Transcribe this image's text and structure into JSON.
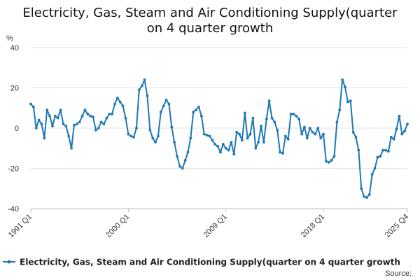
{
  "chart_data": {
    "type": "line",
    "title_lines": [
      "Electricity, Gas, Steam and Air Conditioning Supply(quarter",
      "on 4 quarter growth"
    ],
    "y_unit": "%",
    "ylim": [
      -40,
      40
    ],
    "y_ticks": [
      40,
      20,
      0,
      -20,
      -40
    ],
    "x_tick_labels": [
      "1991 Q1",
      "2000 Q1",
      "2009 Q1",
      "2018 Q1",
      "2025 Q4"
    ],
    "start": "1991 Q1",
    "end": "2025 Q4",
    "grid": "horizontal",
    "legend_position": "bottom",
    "series": [
      {
        "name": "Electricity, Gas, Steam and Air Conditioning Supply(quarter on 4 quarter growth",
        "color": "#1f78b4",
        "values": [
          12,
          10.5,
          0,
          4,
          2,
          -5,
          9,
          6,
          1,
          6,
          5,
          9,
          2,
          1,
          -4,
          -10,
          1.5,
          2,
          3,
          6,
          9,
          7,
          6,
          5.5,
          -1,
          0,
          3,
          2,
          5,
          7,
          7,
          12,
          15,
          13,
          11,
          5,
          -3,
          -4,
          -4.5,
          0,
          19,
          21,
          24,
          16,
          -1,
          -5,
          -7,
          -4,
          8,
          11,
          14,
          12,
          0.5,
          -7,
          -14,
          -19,
          -20,
          -16,
          -12,
          -5,
          8,
          9,
          10.5,
          6,
          -3,
          -3.5,
          -4,
          -6,
          -8,
          -9,
          -12,
          -8,
          -10,
          -11,
          -7,
          -13,
          -2,
          -3,
          -6,
          7.5,
          -5,
          -3,
          5,
          -10,
          -7,
          1,
          -7,
          4.5,
          13.5,
          5,
          3,
          -1,
          -12,
          -12.5,
          -4,
          -5.5,
          7,
          7,
          6,
          4.5,
          -3,
          0.5,
          -5,
          0,
          -2,
          -3,
          0,
          -5,
          -3,
          -16.5,
          -17,
          -16,
          -14,
          3,
          9,
          24,
          20.5,
          13,
          13.5,
          -2,
          -4.5,
          -11,
          -30,
          -34,
          -34.5,
          -33,
          -23,
          -20,
          -14.5,
          -14,
          -11,
          -11,
          -11.5,
          -4.5,
          -5.5,
          -0.5,
          6,
          -3,
          -1.5,
          2
        ]
      }
    ],
    "source_label": "Source:"
  }
}
